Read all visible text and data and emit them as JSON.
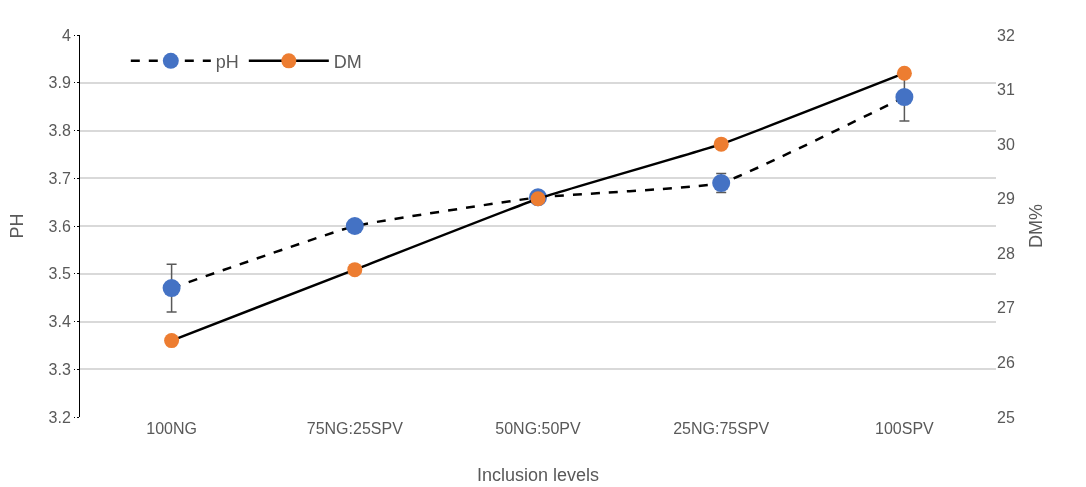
{
  "chart_data": {
    "type": "line",
    "xlabel": "Inclusion levels",
    "ylabel": "PH",
    "y2label": "DM%",
    "categories": [
      "100NG",
      "75NG:25SPV",
      "50NG:50PV",
      "25NG:75SPV",
      "100SPV"
    ],
    "series": [
      {
        "name": "pH",
        "color": "#4472c4",
        "line_style": "dashed",
        "values": [
          3.47,
          3.6,
          3.66,
          3.69,
          3.87
        ],
        "errors": [
          0.05,
          null,
          null,
          0.02,
          0.05
        ]
      },
      {
        "name": "DM",
        "color": "#ed7d31",
        "line_style": "solid",
        "axis": "y2",
        "values": [
          26.4,
          27.7,
          29.0,
          30.0,
          31.3
        ]
      }
    ],
    "ylim": [
      3.2,
      4
    ],
    "yticks": [
      3.2,
      3.3,
      3.4,
      3.5,
      3.6,
      3.7,
      3.8,
      3.9,
      {
        "value": 4,
        "label": "4"
      }
    ],
    "y2lim": [
      25,
      32
    ],
    "y2ticks": [
      25,
      26,
      27,
      28,
      29,
      30,
      31,
      32
    ],
    "grid": "y",
    "legend": "top left",
    "marker": "circle"
  }
}
